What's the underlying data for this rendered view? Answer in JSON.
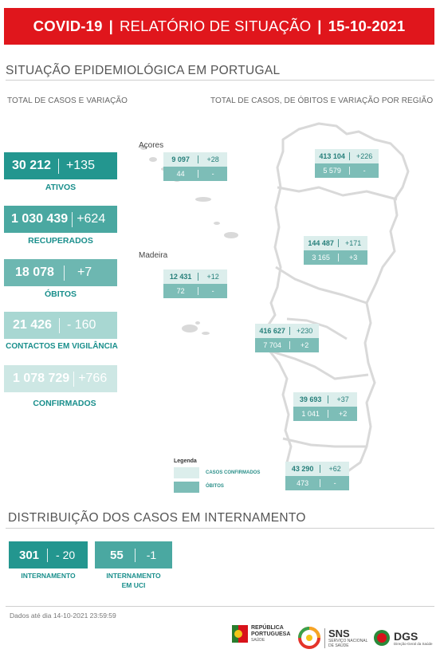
{
  "banner": {
    "left": "COVID-19",
    "middle": "RELATÓRIO DE SITUAÇÃO",
    "right": "15-10-2021",
    "separator": "|"
  },
  "section1": {
    "title": "SITUAÇÃO EPIDEMIOLÓGICA EM PORTUGAL",
    "subtitle_left": "TOTAL DE CASOS E VARIAÇÃO",
    "subtitle_right": "TOTAL DE CASOS, DE ÓBITOS E VARIAÇÃO POR REGIÃO"
  },
  "stats": [
    {
      "total": "30 212",
      "variation": "+135",
      "label": "ATIVOS"
    },
    {
      "total": "1 030 439",
      "variation": "+624",
      "label": "RECUPERADOS"
    },
    {
      "total": "18 078",
      "variation": "+7",
      "label": "ÓBITOS"
    },
    {
      "total": "21 426",
      "variation": "- 160",
      "label": "CONTACTOS EM VIGILÂNCIA"
    },
    {
      "total": "1 078 729",
      "variation": "+766",
      "label": "CONFIRMADOS"
    }
  ],
  "regions": {
    "acores": {
      "name": "Açores",
      "cases": "9 097",
      "cases_var": "+28",
      "deaths": "44",
      "deaths_var": "-"
    },
    "madeira": {
      "name": "Madeira",
      "cases": "12 431",
      "cases_var": "+12",
      "deaths": "72",
      "deaths_var": "-"
    },
    "norte": {
      "cases": "413 104",
      "cases_var": "+226",
      "deaths": "5 579",
      "deaths_var": "-"
    },
    "centro": {
      "cases": "144 487",
      "cases_var": "+171",
      "deaths": "3 165",
      "deaths_var": "+3"
    },
    "lvt": {
      "cases": "416 627",
      "cases_var": "+230",
      "deaths": "7 704",
      "deaths_var": "+2"
    },
    "alentejo": {
      "cases": "39 693",
      "cases_var": "+37",
      "deaths": "1 041",
      "deaths_var": "+2"
    },
    "algarve": {
      "cases": "43 290",
      "cases_var": "+62",
      "deaths": "473",
      "deaths_var": "-"
    }
  },
  "legend": {
    "title": "Legenda",
    "cases_label": "CASOS CONFIRMADOS",
    "deaths_label": "ÓBITOS"
  },
  "section2": {
    "title": "DISTRIBUIÇÃO DOS CASOS EM INTERNAMENTO",
    "items": [
      {
        "total": "301",
        "variation": "- 20",
        "label_line1": "INTERNAMENTO",
        "label_line2": ""
      },
      {
        "total": "55",
        "variation": "-1",
        "label_line1": "INTERNAMENTO",
        "label_line2": "EM UCI"
      }
    ]
  },
  "footer": {
    "note": "Dados até dia 14-10-2021 23:59:59",
    "logo_republica_line1": "REPÚBLICA",
    "logo_republica_line2": "PORTUGUESA",
    "logo_republica_line3": "SAÚDE",
    "logo_sns_line1": "SNS",
    "logo_sns_line2": "SERVIÇO NACIONAL",
    "logo_sns_line3": "DE SAÚDE",
    "logo_dgs": "DGS",
    "logo_dgs_sub": "Direção-Geral da Saúde"
  },
  "colors": {
    "banner": "#e0161c",
    "ativos": "#23968f",
    "recuperados": "#4aa8a1",
    "obitos": "#6db7b1",
    "contactos": "#a8d7d2",
    "confirmados": "#cde7e4",
    "region_cases": "#dceeec",
    "region_deaths": "#7dbdb7"
  }
}
